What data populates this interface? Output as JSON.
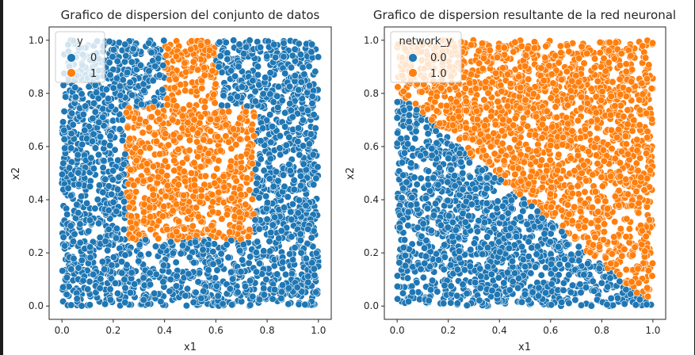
{
  "colors": {
    "class0": "#1f77b4",
    "class1": "#ff7f0e",
    "axis": "#262626",
    "legend_edge": "#cccccc"
  },
  "chart_data": [
    {
      "type": "scatter",
      "title": "Grafico de dispersion del conjunto de datos",
      "xlabel": "x1",
      "ylabel": "x2",
      "xlim": [
        -0.05,
        1.05
      ],
      "ylim": [
        -0.05,
        1.05
      ],
      "xticks": [
        "0.0",
        "0.2",
        "0.4",
        "0.6",
        "0.8",
        "1.0"
      ],
      "yticks": [
        "0.0",
        "0.2",
        "0.4",
        "0.6",
        "0.8",
        "1.0"
      ],
      "legend": {
        "title": "y",
        "placement": "upper-left",
        "entries": [
          "0",
          "1"
        ]
      },
      "rule": "class 1 inside the region 0.25<=x1<=0.75 and 0.25<=x2<=0.75, or 0.40<=x1<=0.60 and x2>0.75; class 0 elsewhere",
      "point_count": 3000,
      "grid": false
    },
    {
      "type": "scatter",
      "title": "Grafico de dispersion resultante de la red neuronal",
      "xlabel": "x1",
      "ylabel": "x2",
      "xlim": [
        -0.05,
        1.05
      ],
      "ylim": [
        -0.05,
        1.05
      ],
      "xticks": [
        "0.0",
        "0.2",
        "0.4",
        "0.6",
        "0.8",
        "1.0"
      ],
      "yticks": [
        "0.0",
        "0.2",
        "0.4",
        "0.6",
        "0.8",
        "1.0"
      ],
      "legend": {
        "title": "network_y",
        "placement": "upper-left",
        "entries": [
          "0.0",
          "1.0"
        ]
      },
      "rule": "class 1.0 where x2 > 0.8 - 0.8*x1 (diagonal boundary); class 0.0 below",
      "point_count": 3000,
      "grid": false
    }
  ]
}
